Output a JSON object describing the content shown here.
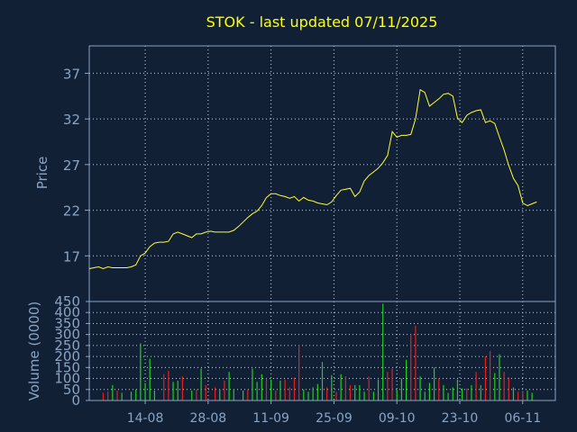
{
  "colors": {
    "background": "#112034",
    "frame": "#8aa4c4",
    "grid": "#c8d2de",
    "title": "#ffff00",
    "axis_text": "#8aa4c4",
    "price_line": "#ffff33",
    "volume_up": "#22cc22",
    "volume_down": "#dd2222"
  },
  "chart_data": [
    {
      "type": "line",
      "title": "STOK - last updated 07/11/2025",
      "ylabel": "Price",
      "ylim": [
        12,
        40
      ],
      "yticks": [
        17,
        22,
        27,
        32,
        37
      ],
      "xlim": [
        0,
        100
      ],
      "xticks": [
        {
          "x": 12,
          "label": "14-08"
        },
        {
          "x": 25.5,
          "label": "28-08"
        },
        {
          "x": 39,
          "label": "11-09"
        },
        {
          "x": 52.5,
          "label": "25-09"
        },
        {
          "x": 66,
          "label": "09-10"
        },
        {
          "x": 79.5,
          "label": "23-10"
        },
        {
          "x": 93,
          "label": "06-11"
        }
      ],
      "grid": true,
      "series": [
        {
          "x": [
            0,
            1,
            2,
            3,
            4,
            5,
            6,
            7,
            8,
            9,
            10,
            11,
            12,
            13,
            14,
            15,
            16,
            17,
            18,
            19,
            20,
            21,
            22,
            23,
            24,
            25,
            26,
            27,
            28,
            29,
            30,
            31,
            32,
            33,
            34,
            35,
            36,
            37,
            38,
            39,
            40,
            41,
            42,
            43,
            44,
            45,
            46,
            47,
            48,
            49,
            50,
            51,
            52,
            53,
            54,
            55,
            56,
            57,
            58,
            59,
            60,
            61,
            62,
            63,
            64,
            65,
            66,
            67,
            68,
            69,
            70,
            71,
            72,
            73,
            74,
            75,
            76,
            77,
            78,
            79,
            80,
            81,
            82,
            83,
            84,
            85,
            86,
            87,
            88,
            89,
            90,
            91,
            92,
            93,
            94,
            95,
            96
          ],
          "values": [
            15.6,
            15.7,
            15.8,
            15.6,
            15.8,
            15.7,
            15.7,
            15.7,
            15.7,
            15.8,
            16.0,
            17.0,
            17.3,
            18.0,
            18.4,
            18.5,
            18.5,
            18.6,
            19.4,
            19.6,
            19.4,
            19.2,
            19.0,
            19.4,
            19.4,
            19.6,
            19.7,
            19.6,
            19.6,
            19.6,
            19.6,
            19.8,
            20.2,
            20.7,
            21.2,
            21.6,
            21.9,
            22.5,
            23.4,
            23.8,
            23.8,
            23.6,
            23.5,
            23.3,
            23.5,
            23.0,
            23.4,
            23.1,
            23.0,
            22.8,
            22.7,
            22.6,
            22.9,
            23.6,
            24.2,
            24.3,
            24.4,
            23.5,
            24.0,
            25.2,
            25.8,
            26.2,
            26.6,
            27.2,
            28.0,
            30.6,
            30.0,
            30.2,
            30.2,
            30.3,
            32.0,
            35.2,
            34.9,
            33.4,
            33.8,
            34.2,
            34.7,
            34.8,
            34.5,
            32.1,
            31.6,
            32.4,
            32.7,
            32.9,
            33.0,
            31.6,
            31.8,
            31.5,
            30.0,
            28.6,
            26.9,
            25.5,
            24.7,
            22.8,
            22.5,
            22.7,
            22.9
          ]
        }
      ]
    },
    {
      "type": "bar",
      "ylabel": "Volume (0000)",
      "ylim": [
        0,
        450
      ],
      "yticks": [
        0,
        50,
        100,
        150,
        200,
        250,
        300,
        350,
        400,
        450
      ],
      "xlim": [
        0,
        100
      ],
      "grid": true,
      "series": [
        {
          "name": "volume",
          "x": [
            3,
            4,
            5,
            6,
            7,
            9,
            10,
            11,
            12,
            13,
            14,
            16,
            17,
            18,
            19,
            20,
            22,
            23,
            24,
            25,
            27,
            28,
            29,
            30,
            31,
            33,
            34,
            35,
            36,
            37,
            38,
            39,
            40,
            41,
            42,
            43,
            44,
            45,
            46,
            47,
            48,
            49,
            50,
            51,
            52,
            53,
            54,
            55,
            56,
            57,
            58,
            59,
            60,
            61,
            62,
            63,
            64,
            65,
            66,
            67,
            68,
            69,
            70,
            71,
            72,
            73,
            74,
            75,
            76,
            77,
            78,
            79,
            80,
            81,
            82,
            83,
            84,
            85,
            86,
            87,
            88,
            89,
            90,
            91,
            92,
            93,
            94,
            95
          ],
          "values": [
            35,
            40,
            70,
            45,
            35,
            40,
            50,
            260,
            80,
            190,
            45,
            120,
            135,
            85,
            90,
            110,
            45,
            50,
            145,
            70,
            60,
            50,
            90,
            130,
            50,
            45,
            50,
            145,
            85,
            120,
            100,
            95,
            45,
            90,
            95,
            60,
            105,
            250,
            50,
            40,
            60,
            75,
            175,
            60,
            115,
            40,
            120,
            110,
            70,
            70,
            70,
            40,
            110,
            40,
            95,
            440,
            130,
            145,
            50,
            100,
            185,
            300,
            340,
            110,
            40,
            80,
            150,
            100,
            70,
            35,
            60,
            95,
            55,
            55,
            70,
            130,
            70,
            200,
            225,
            125,
            210,
            130,
            105,
            60,
            40,
            40,
            45,
            35
          ],
          "direction": [
            "down",
            "down",
            "up",
            "down",
            "up",
            "up",
            "up",
            "up",
            "up",
            "up",
            "up",
            "down",
            "down",
            "up",
            "up",
            "down",
            "up",
            "down",
            "up",
            "down",
            "down",
            "up",
            "down",
            "up",
            "up",
            "up",
            "down",
            "up",
            "up",
            "up",
            "down",
            "up",
            "down",
            "up",
            "down",
            "down",
            "down",
            "down",
            "up",
            "up",
            "up",
            "up",
            "up",
            "down",
            "up",
            "down",
            "up",
            "down",
            "down",
            "up",
            "up",
            "up",
            "down",
            "up",
            "up",
            "up",
            "down",
            "down",
            "up",
            "up",
            "up",
            "down",
            "down",
            "up",
            "up",
            "up",
            "up",
            "down",
            "up",
            "up",
            "up",
            "up",
            "up",
            "down",
            "up",
            "down",
            "up",
            "down",
            "down",
            "up",
            "up",
            "down",
            "down",
            "up",
            "down",
            "down",
            "up",
            "up"
          ]
        }
      ]
    }
  ]
}
